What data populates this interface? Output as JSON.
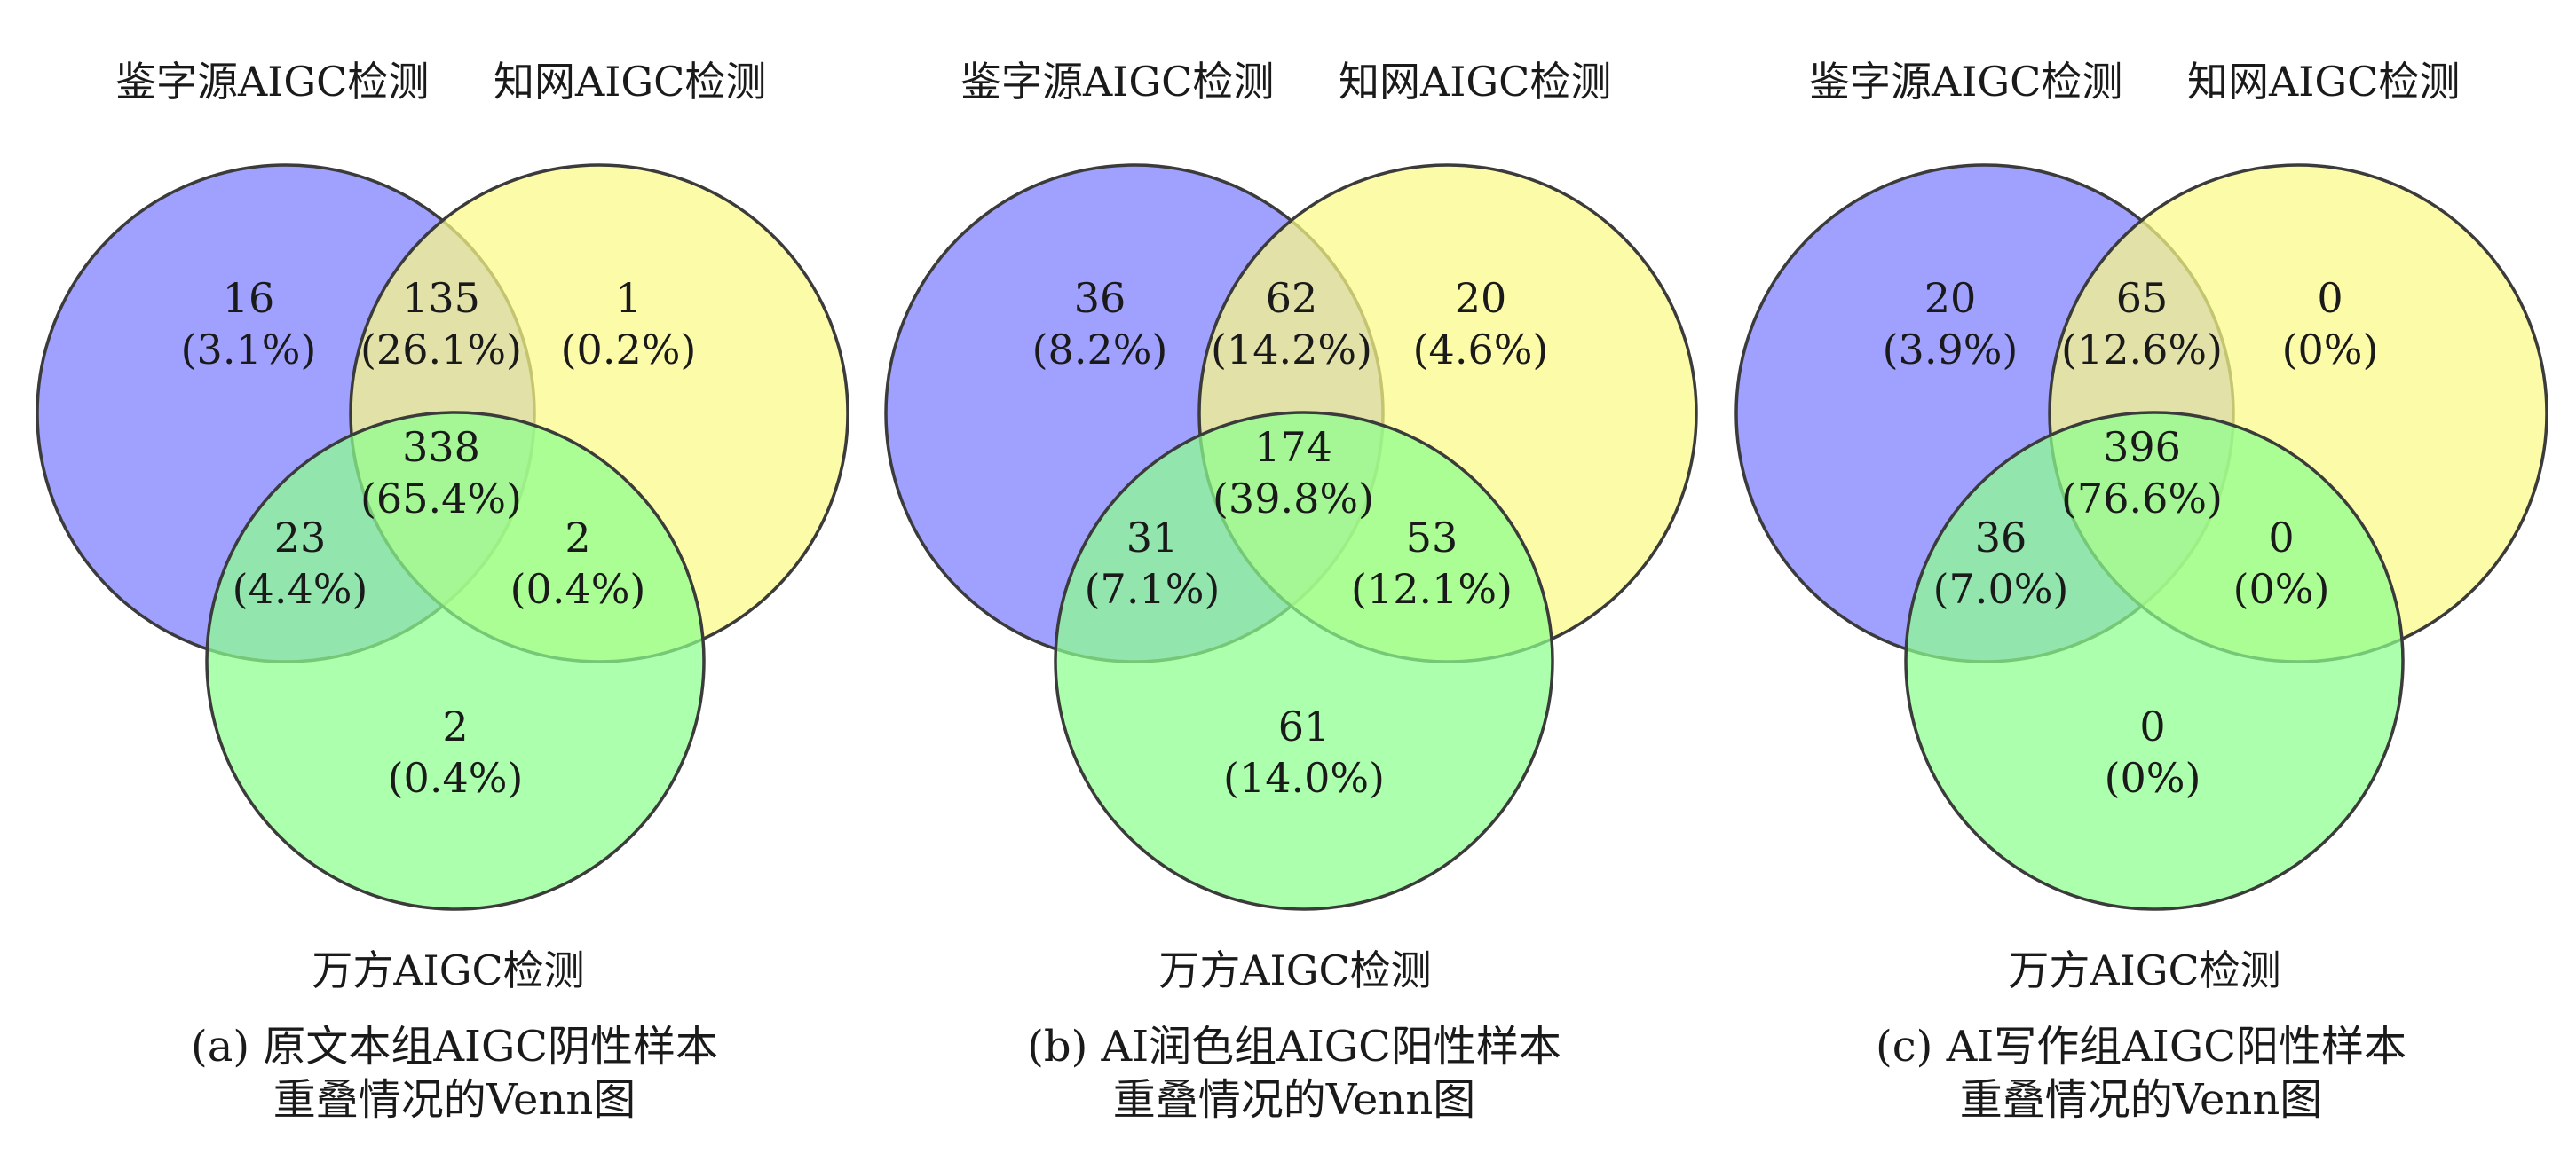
{
  "colors": {
    "set_a": "#7b7bff",
    "set_b": "#fafa86",
    "set_c": "#8cff8c",
    "outline": "#3b3b3b"
  },
  "panels": [
    {
      "label_a": "鉴字源AIGC检测",
      "label_b": "知网AIGC检测",
      "label_c": "万方AIGC检测",
      "caption_line1": "(a) 原文本组AIGC阴性样本",
      "caption_line2": "重叠情况的Venn图",
      "regions": {
        "a_only": {
          "count": "16",
          "pct": "(3.1%)"
        },
        "ab": {
          "count": "135",
          "pct": "(26.1%)"
        },
        "b_only": {
          "count": "1",
          "pct": "(0.2%)"
        },
        "abc": {
          "count": "338",
          "pct": "(65.4%)"
        },
        "ac": {
          "count": "23",
          "pct": "(4.4%)"
        },
        "bc": {
          "count": "2",
          "pct": "(0.4%)"
        },
        "c_only": {
          "count": "2",
          "pct": "(0.4%)"
        }
      }
    },
    {
      "label_a": "鉴字源AIGC检测",
      "label_b": "知网AIGC检测",
      "label_c": "万方AIGC检测",
      "caption_line1": "(b) AI润色组AIGC阳性样本",
      "caption_line2": "重叠情况的Venn图",
      "regions": {
        "a_only": {
          "count": "36",
          "pct": "(8.2%)"
        },
        "ab": {
          "count": "62",
          "pct": "(14.2%)"
        },
        "b_only": {
          "count": "20",
          "pct": "(4.6%)"
        },
        "abc": {
          "count": "174",
          "pct": "(39.8%)"
        },
        "ac": {
          "count": "31",
          "pct": "(7.1%)"
        },
        "bc": {
          "count": "53",
          "pct": "(12.1%)"
        },
        "c_only": {
          "count": "61",
          "pct": "(14.0%)"
        }
      }
    },
    {
      "label_a": "鉴字源AIGC检测",
      "label_b": "知网AIGC检测",
      "label_c": "万方AIGC检测",
      "caption_line1": "(c) AI写作组AIGC阳性样本",
      "caption_line2": "重叠情况的Venn图",
      "regions": {
        "a_only": {
          "count": "20",
          "pct": "(3.9%)"
        },
        "ab": {
          "count": "65",
          "pct": "(12.6%)"
        },
        "b_only": {
          "count": "0",
          "pct": "(0%)"
        },
        "abc": {
          "count": "396",
          "pct": "(76.6%)"
        },
        "ac": {
          "count": "36",
          "pct": "(7.0%)"
        },
        "bc": {
          "count": "0",
          "pct": "(0%)"
        },
        "c_only": {
          "count": "0",
          "pct": "(0%)"
        }
      }
    }
  ]
}
